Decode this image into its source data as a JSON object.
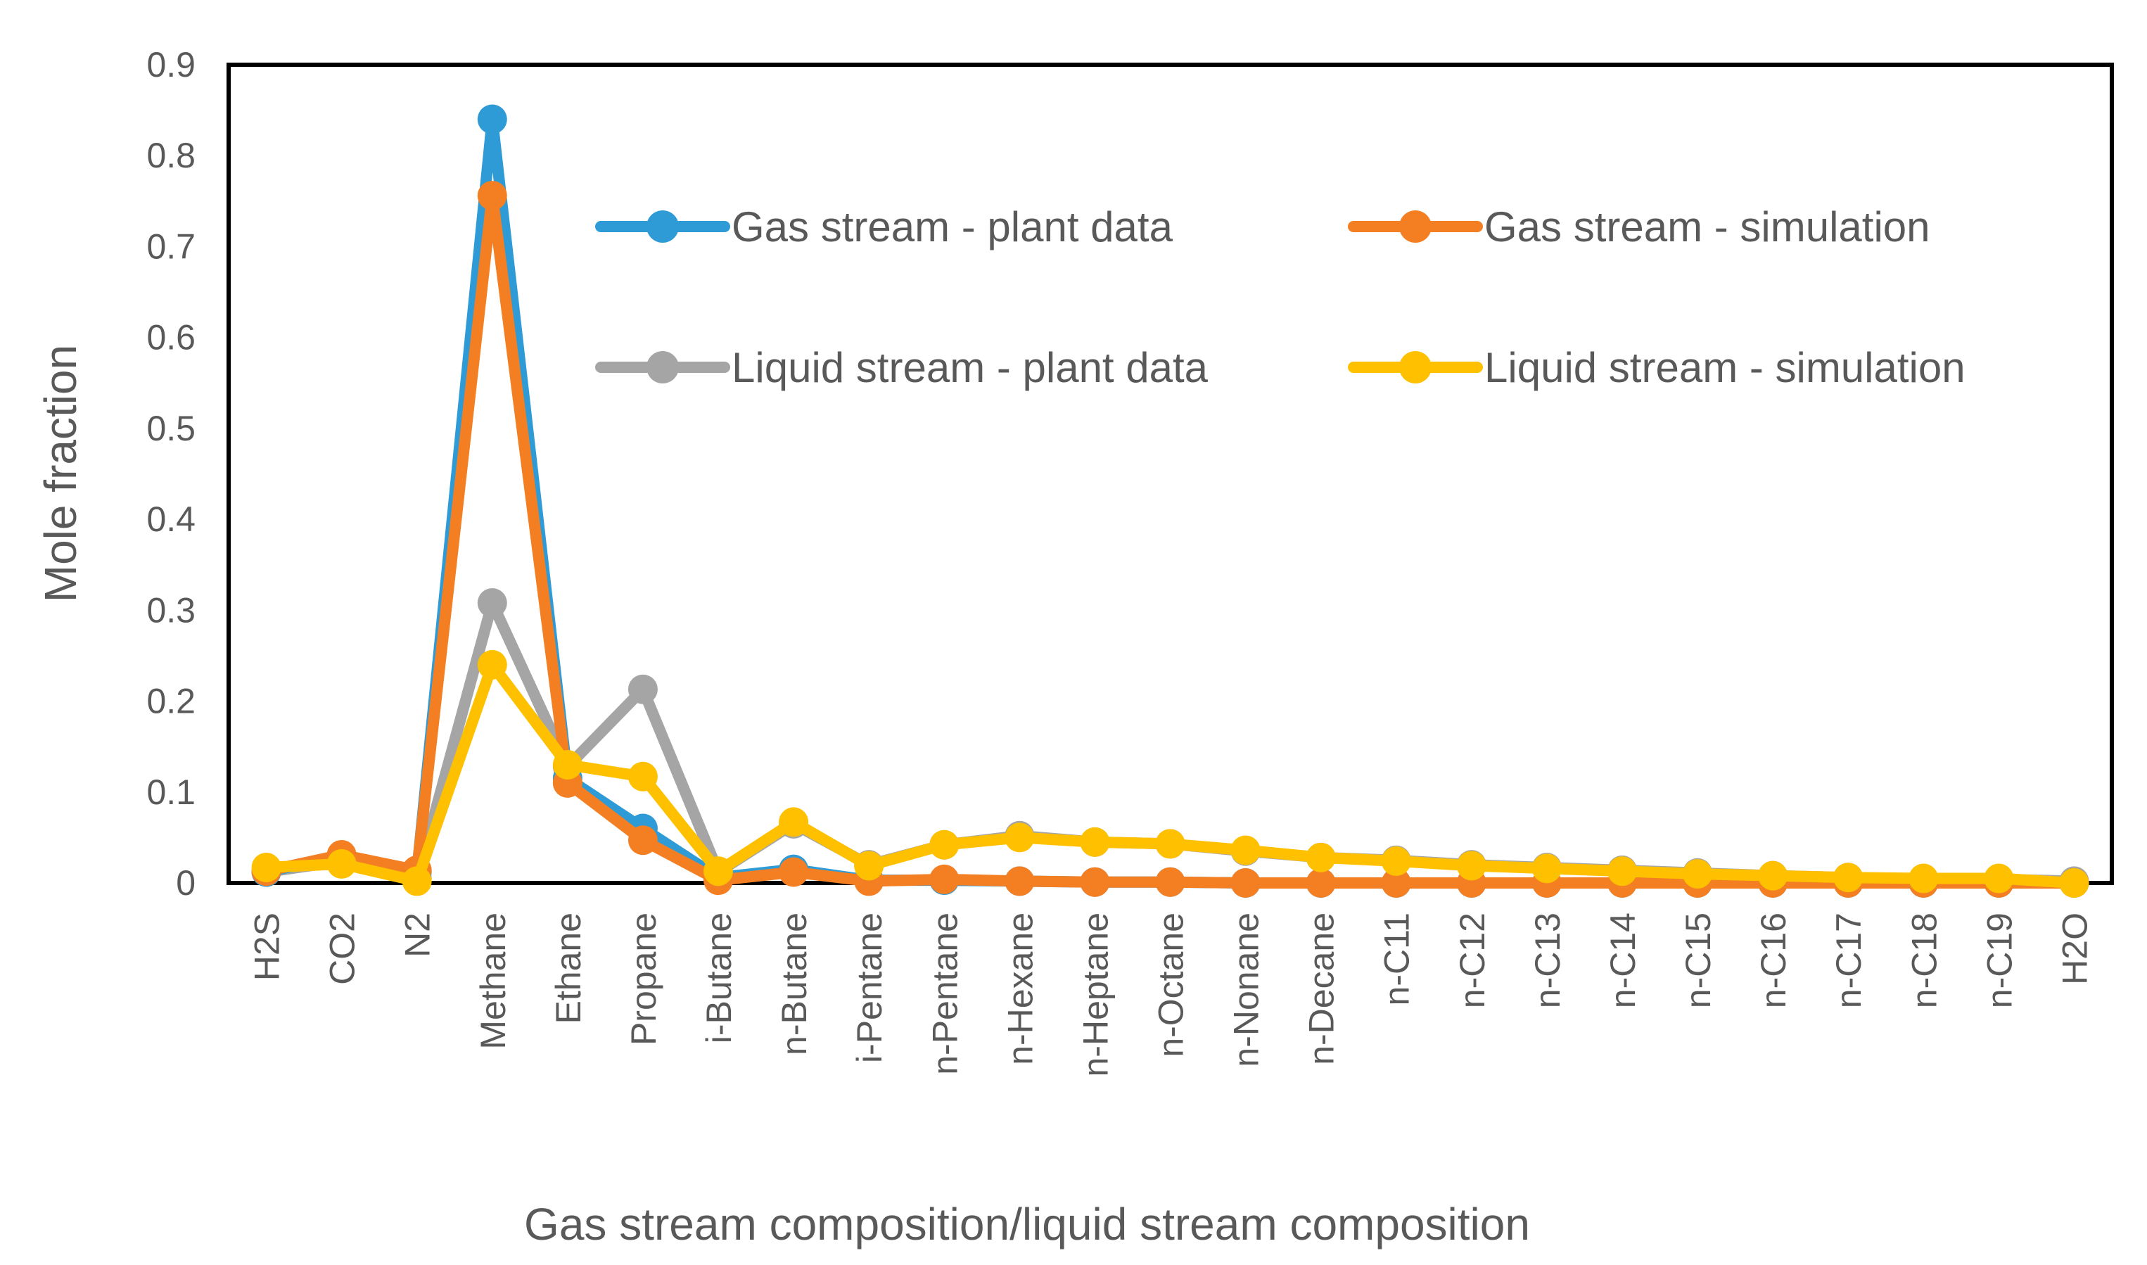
{
  "chart_data": {
    "type": "line",
    "title": "",
    "xlabel": "Gas stream composition/liquid stream composition",
    "ylabel": "Mole fraction",
    "ylim": [
      0,
      0.9
    ],
    "yticks": [
      "0",
      "0.1",
      "0.2",
      "0.3",
      "0.4",
      "0.5",
      "0.6",
      "0.7",
      "0.8",
      "0.9"
    ],
    "grid": false,
    "legend_position": "top-right inside plot, two columns",
    "categories": [
      "H2S",
      "CO2",
      "N2",
      "Methane",
      "Ethane",
      "Propane",
      "i-Butane",
      "n-Butane",
      "i-Pentane",
      "n-Pentane",
      "n-Hexane",
      "n-Heptane",
      "n-Octane",
      "n-Nonane",
      "n-Decane",
      "n-C11",
      "n-C12",
      "n-C13",
      "n-C14",
      "n-C15",
      "n-C16",
      "n-C17",
      "n-C18",
      "n-C19",
      "H2O"
    ],
    "series": [
      {
        "name": "Liquid stream - plant data",
        "color": "#A5A5A5",
        "values": [
          0.012,
          0.024,
          0.005,
          0.308,
          0.128,
          0.213,
          0.012,
          0.065,
          0.02,
          0.042,
          0.052,
          0.045,
          0.043,
          0.035,
          0.028,
          0.025,
          0.02,
          0.017,
          0.014,
          0.011,
          0.008,
          0.006,
          0.004,
          0.004,
          0.002
        ]
      },
      {
        "name": "Gas stream - plant data",
        "color": "#2E9BD6",
        "values": [
          0.012,
          0.03,
          0.012,
          0.84,
          0.115,
          0.06,
          0.006,
          0.015,
          0.003,
          0.003,
          0.002,
          0.001,
          0.001,
          0.0,
          0.0,
          0.0,
          0.0,
          0.0,
          0.0,
          0.0,
          0.0,
          0.0,
          0.0,
          0.0,
          0.0
        ]
      },
      {
        "name": "Gas stream - simulation",
        "color": "#F47F23",
        "values": [
          0.013,
          0.031,
          0.014,
          0.756,
          0.11,
          0.047,
          0.003,
          0.012,
          0.002,
          0.004,
          0.002,
          0.001,
          0.001,
          0.0,
          0.0,
          0.0,
          0.0,
          0.0,
          0.0,
          0.0,
          0.0,
          0.0,
          0.0,
          0.0,
          0.0
        ]
      },
      {
        "name": "Liquid stream - simulation",
        "color": "#FFC000",
        "values": [
          0.017,
          0.021,
          0.002,
          0.24,
          0.13,
          0.117,
          0.013,
          0.067,
          0.019,
          0.042,
          0.05,
          0.045,
          0.043,
          0.036,
          0.028,
          0.024,
          0.019,
          0.016,
          0.013,
          0.01,
          0.008,
          0.006,
          0.005,
          0.005,
          0.0
        ]
      }
    ],
    "legend_order": [
      1,
      2,
      0,
      3
    ]
  }
}
